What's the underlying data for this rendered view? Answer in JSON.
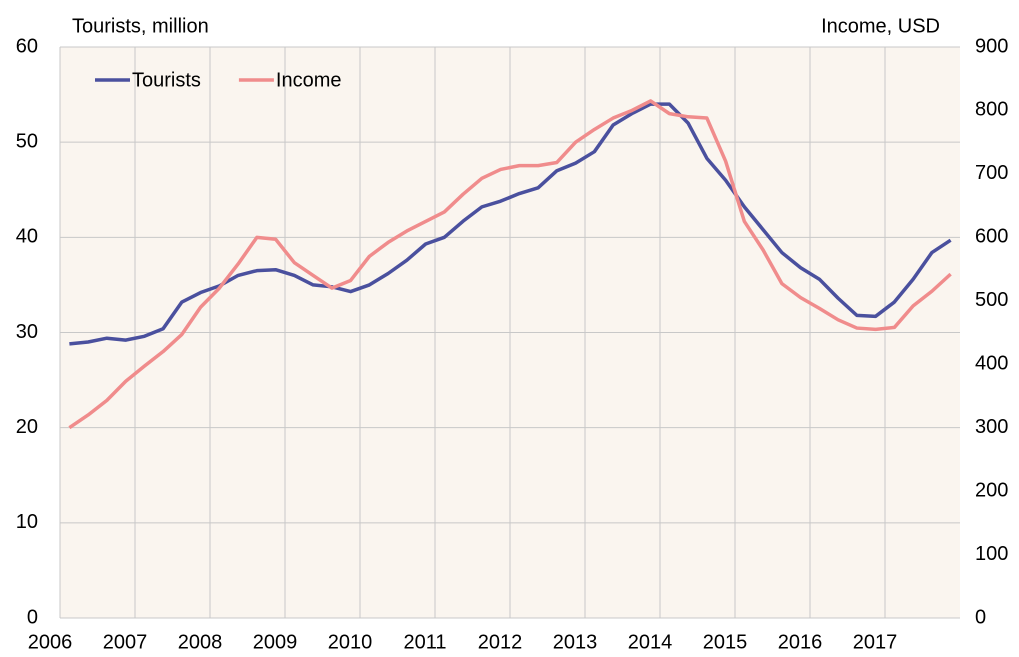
{
  "chart_data": {
    "type": "line",
    "ylabel": "Tourists, million",
    "y2label": "Income, USD",
    "x": [
      2006.125,
      2006.375,
      2006.625,
      2006.875,
      2007.125,
      2007.375,
      2007.625,
      2007.875,
      2008.125,
      2008.375,
      2008.625,
      2008.875,
      2009.125,
      2009.375,
      2009.625,
      2009.875,
      2010.125,
      2010.375,
      2010.625,
      2010.875,
      2011.125,
      2011.375,
      2011.625,
      2011.875,
      2012.125,
      2012.375,
      2012.625,
      2012.875,
      2013.125,
      2013.375,
      2013.625,
      2013.875,
      2014.125,
      2014.375,
      2014.625,
      2014.875,
      2015.125,
      2015.375,
      2015.625,
      2015.875,
      2016.125,
      2016.375,
      2016.625,
      2016.875,
      2017.125,
      2017.375,
      2017.625,
      2017.875
    ],
    "xlim": [
      2006,
      2018
    ],
    "xticks": [
      2006,
      2007,
      2008,
      2009,
      2010,
      2011,
      2012,
      2013,
      2014,
      2015,
      2016,
      2017
    ],
    "ylim": [
      0,
      60
    ],
    "yticks": [
      0,
      10,
      20,
      30,
      40,
      50,
      60
    ],
    "y2lim": [
      0,
      900
    ],
    "y2ticks": [
      0,
      100,
      200,
      300,
      400,
      500,
      600,
      700,
      800,
      900
    ],
    "grid": true,
    "legend": "upper left",
    "series": [
      {
        "name": "Tourists",
        "color": "#4a509e",
        "values": [
          28.8,
          29.0,
          29.4,
          29.2,
          29.6,
          30.4,
          33.2,
          34.2,
          34.9,
          36.0,
          36.5,
          36.6,
          36.0,
          35.0,
          34.8,
          34.3,
          35.0,
          36.2,
          37.6,
          39.3,
          40.0,
          41.7,
          43.2,
          43.8,
          44.6,
          45.2,
          47.0,
          47.8,
          49.0,
          51.8,
          53.0,
          54.0,
          54.0,
          52.0,
          48.3,
          46.0,
          43.2,
          40.8,
          38.4,
          36.8,
          35.6,
          33.6,
          31.8,
          31.7,
          33.2,
          35.6,
          38.4,
          39.7
        ]
      },
      {
        "name": "Income",
        "color": "#f08c8c",
        "axis": "y2",
        "values": [
          300,
          320,
          343,
          373,
          397,
          420,
          447,
          490,
          520,
          558,
          600,
          597,
          560,
          540,
          520,
          532,
          570,
          592,
          610,
          625,
          640,
          668,
          693,
          707,
          713,
          713,
          718,
          750,
          770,
          788,
          800,
          815,
          795,
          790,
          788,
          720,
          625,
          580,
          527,
          505,
          488,
          470,
          457,
          455,
          458,
          492,
          515,
          542
        ]
      }
    ]
  }
}
